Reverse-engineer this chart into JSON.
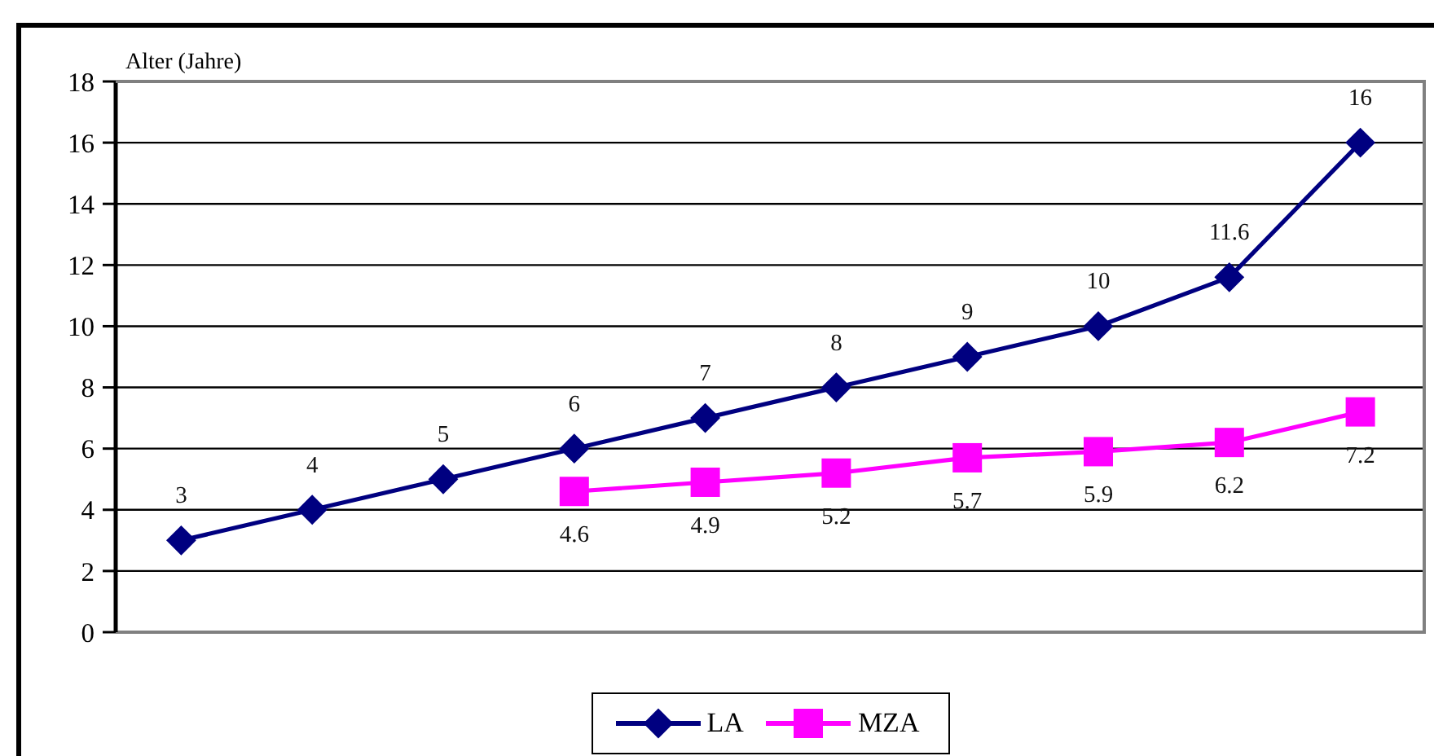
{
  "chart_data": {
    "type": "line",
    "ylabel": "Alter (Jahre)",
    "categories": [
      null,
      null,
      null,
      null,
      null,
      null,
      null,
      null,
      null,
      null
    ],
    "series": [
      {
        "name": "LA",
        "color": "#000080",
        "marker": "diamond",
        "values": [
          3,
          4,
          5,
          6,
          7,
          8,
          9,
          10,
          11.6,
          16
        ]
      },
      {
        "name": "MZA",
        "color": "#ff00ff",
        "marker": "square",
        "values": [
          null,
          null,
          null,
          4.6,
          4.9,
          5.2,
          5.7,
          5.9,
          6.2,
          7.2
        ]
      }
    ],
    "ylim": [
      0,
      18
    ],
    "yticks": [
      0,
      2,
      4,
      6,
      8,
      10,
      12,
      14,
      16,
      18
    ],
    "grid": "y",
    "legend": "bottom",
    "data_labels": true
  }
}
